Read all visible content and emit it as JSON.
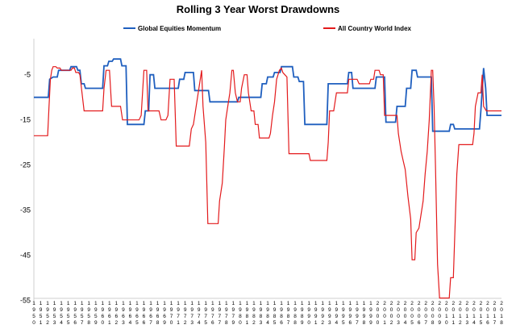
{
  "chart_data": {
    "type": "line",
    "title": "Rolling 3 Year Worst Drawdowns",
    "xlabel": "",
    "ylabel": "",
    "ylim": [
      -56,
      3
    ],
    "yticks": [
      "-5",
      "-15",
      "-25",
      "-35",
      "-45",
      "-55"
    ],
    "ytick_values": [
      -5,
      -15,
      -25,
      -35,
      -45,
      -55
    ],
    "grid": false,
    "legend_position": "top",
    "x_label_years": [
      "1950",
      "1951",
      "1952",
      "1953",
      "1954",
      "1955",
      "1956",
      "1957",
      "1958",
      "1959",
      "1960",
      "1961",
      "1962",
      "1963",
      "1964",
      "1965",
      "1966",
      "1967",
      "1968",
      "1969",
      "1970",
      "1971",
      "1972",
      "1973",
      "1974",
      "1975",
      "1976",
      "1977",
      "1978",
      "1979",
      "1980",
      "1981",
      "1982",
      "1983",
      "1984",
      "1985",
      "1986",
      "1987",
      "1988",
      "1989",
      "1990",
      "1991",
      "1992",
      "1993",
      "1994",
      "1995",
      "1996",
      "1997",
      "1998",
      "1999",
      "2000",
      "2001",
      "2002",
      "2003",
      "2004",
      "2005",
      "2006",
      "2007",
      "2008",
      "2009",
      "2010",
      "2011",
      "2012",
      "2013",
      "2014",
      "2015",
      "2016",
      "2017",
      "2018"
    ],
    "series": [
      {
        "name": "Global Equities Momentum",
        "color": "#1f5fbf",
        "points": [
          [
            1950.0,
            -10
          ],
          [
            1951.0,
            -10
          ],
          [
            1952.1,
            -10
          ],
          [
            1952.3,
            -6
          ],
          [
            1952.8,
            -5.5
          ],
          [
            1953.4,
            -5.5
          ],
          [
            1953.6,
            -4
          ],
          [
            1955.2,
            -4
          ],
          [
            1955.4,
            -3.2
          ],
          [
            1956.2,
            -3.2
          ],
          [
            1956.4,
            -4
          ],
          [
            1956.7,
            -4
          ],
          [
            1956.9,
            -7
          ],
          [
            1957.3,
            -7
          ],
          [
            1957.5,
            -8
          ],
          [
            1960.0,
            -8
          ],
          [
            1960.2,
            -3
          ],
          [
            1960.7,
            -3
          ],
          [
            1960.9,
            -2
          ],
          [
            1961.4,
            -2
          ],
          [
            1961.6,
            -1.5
          ],
          [
            1962.6,
            -1.5
          ],
          [
            1962.8,
            -3
          ],
          [
            1963.4,
            -3
          ],
          [
            1963.6,
            -16
          ],
          [
            1966.0,
            -16
          ],
          [
            1966.2,
            -13
          ],
          [
            1966.7,
            -13
          ],
          [
            1966.9,
            -5
          ],
          [
            1967.4,
            -5
          ],
          [
            1967.6,
            -8
          ],
          [
            1971.0,
            -8
          ],
          [
            1971.2,
            -6
          ],
          [
            1971.8,
            -6
          ],
          [
            1972.0,
            -4.5
          ],
          [
            1973.2,
            -4.5
          ],
          [
            1973.4,
            -8.5
          ],
          [
            1975.4,
            -8.5
          ],
          [
            1975.6,
            -11
          ],
          [
            1979.6,
            -11
          ],
          [
            1979.8,
            -10
          ],
          [
            1982.0,
            -10
          ],
          [
            1982.2,
            -10
          ],
          [
            1983.0,
            -10
          ],
          [
            1983.2,
            -7
          ],
          [
            1983.8,
            -7
          ],
          [
            1984.0,
            -5.5
          ],
          [
            1984.8,
            -5.5
          ],
          [
            1985.0,
            -4.5
          ],
          [
            1985.8,
            -4.5
          ],
          [
            1986.0,
            -3.2
          ],
          [
            1987.6,
            -3.2
          ],
          [
            1987.8,
            -5.5
          ],
          [
            1988.4,
            -5.5
          ],
          [
            1988.6,
            -6.5
          ],
          [
            1989.2,
            -6.5
          ],
          [
            1989.4,
            -16
          ],
          [
            1992.6,
            -16
          ],
          [
            1992.8,
            -7
          ],
          [
            1995.6,
            -7
          ],
          [
            1995.8,
            -4.5
          ],
          [
            1996.2,
            -4.5
          ],
          [
            1996.4,
            -8
          ],
          [
            1999.6,
            -8
          ],
          [
            1999.8,
            -5.5
          ],
          [
            2001.0,
            -5.5
          ],
          [
            2001.2,
            -15.5
          ],
          [
            2002.6,
            -15.5
          ],
          [
            2002.8,
            -12
          ],
          [
            2004.0,
            -12
          ],
          [
            2004.2,
            -8
          ],
          [
            2004.8,
            -8
          ],
          [
            2005.0,
            -4
          ],
          [
            2005.6,
            -4
          ],
          [
            2005.8,
            -5.5
          ],
          [
            2007.8,
            -5.5
          ],
          [
            2008.0,
            -17.5
          ],
          [
            2010.4,
            -17.5
          ],
          [
            2010.6,
            -16
          ],
          [
            2011.0,
            -16
          ],
          [
            2011.2,
            -17
          ],
          [
            2014.8,
            -17
          ],
          [
            2015.0,
            -13
          ],
          [
            2015.4,
            -3.5
          ],
          [
            2015.7,
            -8
          ],
          [
            2015.9,
            -14
          ],
          [
            2018.0,
            -14
          ]
        ]
      },
      {
        "name": "All Country World Index",
        "color": "#e31a1c",
        "points": [
          [
            1950.0,
            -18.5
          ],
          [
            1952.0,
            -18.5
          ],
          [
            1952.2,
            -12
          ],
          [
            1952.4,
            -6
          ],
          [
            1952.6,
            -4
          ],
          [
            1952.8,
            -3.2
          ],
          [
            1953.2,
            -3.2
          ],
          [
            1953.4,
            -3.5
          ],
          [
            1953.8,
            -3.5
          ],
          [
            1954.0,
            -4
          ],
          [
            1955.4,
            -4
          ],
          [
            1955.6,
            -3.5
          ],
          [
            1955.9,
            -3.5
          ],
          [
            1956.1,
            -4.5
          ],
          [
            1956.5,
            -4.5
          ],
          [
            1956.7,
            -5
          ],
          [
            1957.0,
            -9
          ],
          [
            1957.3,
            -13
          ],
          [
            1960.0,
            -13
          ],
          [
            1960.2,
            -8
          ],
          [
            1960.5,
            -4
          ],
          [
            1961.0,
            -4
          ],
          [
            1961.3,
            -12
          ],
          [
            1962.6,
            -12
          ],
          [
            1962.9,
            -15
          ],
          [
            1965.3,
            -15
          ],
          [
            1965.6,
            -14
          ],
          [
            1966.0,
            -4
          ],
          [
            1966.4,
            -4
          ],
          [
            1966.6,
            -13
          ],
          [
            1968.2,
            -13
          ],
          [
            1968.5,
            -15
          ],
          [
            1969.2,
            -15
          ],
          [
            1969.5,
            -14
          ],
          [
            1969.8,
            -6
          ],
          [
            1970.4,
            -6
          ],
          [
            1970.7,
            -20.8
          ],
          [
            1972.6,
            -20.8
          ],
          [
            1972.9,
            -17
          ],
          [
            1973.2,
            -16
          ],
          [
            1973.4,
            -14
          ],
          [
            1973.6,
            -12
          ],
          [
            1974.0,
            -8
          ],
          [
            1974.4,
            -4
          ],
          [
            1974.6,
            -12
          ],
          [
            1975.0,
            -20
          ],
          [
            1975.3,
            -38
          ],
          [
            1976.8,
            -38
          ],
          [
            1977.0,
            -33
          ],
          [
            1977.2,
            -31
          ],
          [
            1977.4,
            -29
          ],
          [
            1977.7,
            -21
          ],
          [
            1977.9,
            -15
          ],
          [
            1978.2,
            -12
          ],
          [
            1978.5,
            -9
          ],
          [
            1978.8,
            -4
          ],
          [
            1979.0,
            -4
          ],
          [
            1979.3,
            -9
          ],
          [
            1979.6,
            -11
          ],
          [
            1980.0,
            -11
          ],
          [
            1980.2,
            -8
          ],
          [
            1980.6,
            -5
          ],
          [
            1981.0,
            -5
          ],
          [
            1981.2,
            -9
          ],
          [
            1981.6,
            -13
          ],
          [
            1982.0,
            -13
          ],
          [
            1982.2,
            -16
          ],
          [
            1982.6,
            -16
          ],
          [
            1982.8,
            -19
          ],
          [
            1984.2,
            -19
          ],
          [
            1984.4,
            -18
          ],
          [
            1984.7,
            -14
          ],
          [
            1985.0,
            -11
          ],
          [
            1985.3,
            -6
          ],
          [
            1985.7,
            -4
          ],
          [
            1986.0,
            -3.5
          ],
          [
            1986.2,
            -4.5
          ],
          [
            1986.5,
            -5
          ],
          [
            1986.8,
            -5.5
          ],
          [
            1987.1,
            -22.5
          ],
          [
            1990.0,
            -22.5
          ],
          [
            1990.2,
            -24
          ],
          [
            1992.6,
            -24
          ],
          [
            1992.8,
            -20
          ],
          [
            1993.0,
            -13
          ],
          [
            1993.6,
            -13
          ],
          [
            1994.0,
            -9
          ],
          [
            1995.6,
            -9
          ],
          [
            1995.8,
            -6
          ],
          [
            1997.0,
            -6
          ],
          [
            1997.3,
            -7
          ],
          [
            1998.8,
            -7
          ],
          [
            1999.0,
            -6
          ],
          [
            1999.4,
            -6
          ],
          [
            1999.6,
            -4
          ],
          [
            2000.2,
            -4
          ],
          [
            2000.4,
            -5
          ],
          [
            2000.8,
            -5
          ],
          [
            2001.0,
            -14
          ],
          [
            2002.8,
            -14
          ],
          [
            2003.0,
            -18
          ],
          [
            2003.4,
            -22
          ],
          [
            2003.7,
            -24
          ],
          [
            2004.0,
            -26
          ],
          [
            2004.4,
            -32
          ],
          [
            2004.8,
            -37
          ],
          [
            2005.0,
            -46
          ],
          [
            2005.4,
            -46
          ],
          [
            2005.6,
            -40
          ],
          [
            2006.0,
            -39
          ],
          [
            2006.3,
            -36
          ],
          [
            2006.6,
            -33
          ],
          [
            2006.9,
            -27
          ],
          [
            2007.2,
            -22
          ],
          [
            2007.5,
            -15
          ],
          [
            2007.8,
            -4
          ],
          [
            2008.0,
            -4
          ],
          [
            2008.2,
            -12
          ],
          [
            2008.4,
            -25
          ],
          [
            2008.7,
            -47
          ],
          [
            2009.0,
            -54.5
          ],
          [
            2010.4,
            -54.5
          ],
          [
            2010.6,
            -50
          ],
          [
            2011.0,
            -50
          ],
          [
            2011.3,
            -36
          ],
          [
            2011.5,
            -27
          ],
          [
            2011.8,
            -20.5
          ],
          [
            2013.4,
            -20.5
          ],
          [
            2013.8,
            -20.5
          ],
          [
            2014.0,
            -18
          ],
          [
            2014.2,
            -12
          ],
          [
            2014.6,
            -9
          ],
          [
            2015.0,
            -9
          ],
          [
            2015.2,
            -5
          ],
          [
            2015.4,
            -12
          ],
          [
            2015.6,
            -12.5
          ],
          [
            2015.8,
            -13
          ],
          [
            2018.0,
            -13
          ]
        ]
      }
    ]
  }
}
